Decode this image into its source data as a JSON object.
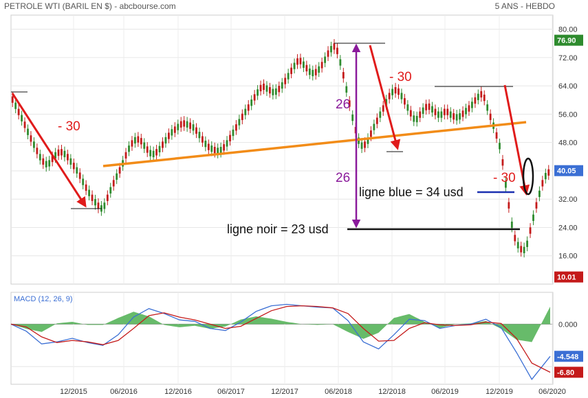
{
  "header": {
    "title": "PETROLE WTI (BARIL EN $) - abcbourse.com",
    "period": "5 ANS - HEBDO"
  },
  "chart_data": [
    {
      "type": "candlestick",
      "series_name": "PETROLE WTI",
      "ylim": [
        8,
        84
      ],
      "yticks": [
        16,
        24,
        32,
        40,
        48,
        56,
        64,
        72,
        80
      ],
      "yticks_labels": [
        "16.00",
        "24.00",
        "32.00",
        "40.00",
        "48.00",
        "56.00",
        "64.00",
        "72.00",
        "80.00"
      ],
      "xticks": [
        "12/2015",
        "06/2016",
        "12/2016",
        "06/2017",
        "12/2017",
        "06/2018",
        "12/2018",
        "06/2019",
        "12/2019",
        "06/2020"
      ],
      "grid": true,
      "price_path": [
        {
          "x": 0,
          "y": 61.0
        },
        {
          "x": 4,
          "y": 57.5
        },
        {
          "x": 8,
          "y": 54.0
        },
        {
          "x": 12,
          "y": 50.0
        },
        {
          "x": 16,
          "y": 46.5
        },
        {
          "x": 20,
          "y": 43.0
        },
        {
          "x": 24,
          "y": 41.5
        },
        {
          "x": 28,
          "y": 44.0
        },
        {
          "x": 32,
          "y": 45.5
        },
        {
          "x": 36,
          "y": 44.5
        },
        {
          "x": 40,
          "y": 42.0
        },
        {
          "x": 44,
          "y": 39.5
        },
        {
          "x": 48,
          "y": 36.0
        },
        {
          "x": 52,
          "y": 33.0
        },
        {
          "x": 56,
          "y": 30.5
        },
        {
          "x": 60,
          "y": 29.0
        },
        {
          "x": 64,
          "y": 33.5
        },
        {
          "x": 68,
          "y": 37.5
        },
        {
          "x": 72,
          "y": 41.0
        },
        {
          "x": 76,
          "y": 45.5
        },
        {
          "x": 80,
          "y": 48.5
        },
        {
          "x": 84,
          "y": 49.0
        },
        {
          "x": 88,
          "y": 46.5
        },
        {
          "x": 92,
          "y": 44.5
        },
        {
          "x": 96,
          "y": 45.5
        },
        {
          "x": 100,
          "y": 48.0
        },
        {
          "x": 104,
          "y": 50.5
        },
        {
          "x": 108,
          "y": 52.0
        },
        {
          "x": 112,
          "y": 53.5
        },
        {
          "x": 116,
          "y": 53.0
        },
        {
          "x": 120,
          "y": 52.0
        },
        {
          "x": 124,
          "y": 49.5
        },
        {
          "x": 128,
          "y": 47.0
        },
        {
          "x": 132,
          "y": 46.0
        },
        {
          "x": 136,
          "y": 45.5
        },
        {
          "x": 140,
          "y": 47.0
        },
        {
          "x": 144,
          "y": 50.0
        },
        {
          "x": 148,
          "y": 53.0
        },
        {
          "x": 152,
          "y": 56.0
        },
        {
          "x": 156,
          "y": 58.5
        },
        {
          "x": 160,
          "y": 61.5
        },
        {
          "x": 164,
          "y": 64.0
        },
        {
          "x": 168,
          "y": 63.0
        },
        {
          "x": 172,
          "y": 62.0
        },
        {
          "x": 176,
          "y": 63.5
        },
        {
          "x": 180,
          "y": 66.0
        },
        {
          "x": 184,
          "y": 69.0
        },
        {
          "x": 188,
          "y": 71.5
        },
        {
          "x": 192,
          "y": 69.5
        },
        {
          "x": 196,
          "y": 67.5
        },
        {
          "x": 200,
          "y": 68.0
        },
        {
          "x": 204,
          "y": 70.5
        },
        {
          "x": 208,
          "y": 74.0
        },
        {
          "x": 212,
          "y": 75.5
        },
        {
          "x": 216,
          "y": 69.0
        },
        {
          "x": 220,
          "y": 61.0
        },
        {
          "x": 224,
          "y": 53.0
        },
        {
          "x": 228,
          "y": 47.0
        },
        {
          "x": 232,
          "y": 47.5
        },
        {
          "x": 236,
          "y": 51.5
        },
        {
          "x": 240,
          "y": 55.0
        },
        {
          "x": 244,
          "y": 58.5
        },
        {
          "x": 248,
          "y": 62.0
        },
        {
          "x": 252,
          "y": 63.0
        },
        {
          "x": 256,
          "y": 60.5
        },
        {
          "x": 260,
          "y": 57.0
        },
        {
          "x": 264,
          "y": 54.0
        },
        {
          "x": 268,
          "y": 56.5
        },
        {
          "x": 272,
          "y": 58.5
        },
        {
          "x": 276,
          "y": 57.0
        },
        {
          "x": 280,
          "y": 55.5
        },
        {
          "x": 284,
          "y": 57.0
        },
        {
          "x": 288,
          "y": 55.5
        },
        {
          "x": 292,
          "y": 55.0
        },
        {
          "x": 296,
          "y": 56.5
        },
        {
          "x": 300,
          "y": 58.0
        },
        {
          "x": 304,
          "y": 60.5
        },
        {
          "x": 308,
          "y": 62.0
        },
        {
          "x": 312,
          "y": 56.5
        },
        {
          "x": 316,
          "y": 51.5
        },
        {
          "x": 320,
          "y": 45.5
        },
        {
          "x": 324,
          "y": 33.0
        },
        {
          "x": 328,
          "y": 22.0
        },
        {
          "x": 332,
          "y": 18.0
        },
        {
          "x": 336,
          "y": 17.5
        },
        {
          "x": 340,
          "y": 25.0
        },
        {
          "x": 344,
          "y": 32.0
        },
        {
          "x": 348,
          "y": 38.0
        },
        {
          "x": 352,
          "y": 40.05
        }
      ],
      "x_range": [
        0,
        352
      ],
      "value_labels": [
        {
          "y": 76.9,
          "text": "76.90",
          "color": "#2e8b2e"
        },
        {
          "y": 40.05,
          "text": "40.05",
          "color": "#3b6fd4"
        },
        {
          "y": 10.01,
          "text": "10.01",
          "color": "#c41a1a"
        }
      ],
      "annotations": {
        "drop_labels": [
          "- 30",
          "- 30",
          "- 30"
        ],
        "vertical_labels": [
          "26",
          "26"
        ],
        "blue_line_text": "ligne blue = 34 usd",
        "black_line_text": "ligne noir = 23 usd"
      }
    },
    {
      "type": "macd",
      "title": "MACD (12, 26, 9)",
      "ylim": [
        -8.5,
        4.5
      ],
      "yticks_labels": [
        "0.000"
      ],
      "value_labels": [
        {
          "y": -4.548,
          "text": "-4.548",
          "color": "#3b6fd4"
        },
        {
          "y": -6.8,
          "text": "-6.80",
          "color": "#c41a1a"
        }
      ],
      "macd_line": [
        {
          "x": 0,
          "y": 0
        },
        {
          "x": 10,
          "y": -1.0
        },
        {
          "x": 20,
          "y": -2.8
        },
        {
          "x": 30,
          "y": -2.5
        },
        {
          "x": 40,
          "y": -2.0
        },
        {
          "x": 50,
          "y": -2.6
        },
        {
          "x": 60,
          "y": -3.0
        },
        {
          "x": 70,
          "y": -1.5
        },
        {
          "x": 80,
          "y": 1.0
        },
        {
          "x": 90,
          "y": 2.2
        },
        {
          "x": 100,
          "y": 1.5
        },
        {
          "x": 110,
          "y": 0.6
        },
        {
          "x": 120,
          "y": 0.4
        },
        {
          "x": 130,
          "y": -0.6
        },
        {
          "x": 140,
          "y": -0.9
        },
        {
          "x": 150,
          "y": 0.3
        },
        {
          "x": 160,
          "y": 1.8
        },
        {
          "x": 170,
          "y": 2.6
        },
        {
          "x": 180,
          "y": 2.8
        },
        {
          "x": 190,
          "y": 2.6
        },
        {
          "x": 200,
          "y": 2.4
        },
        {
          "x": 210,
          "y": 2.3
        },
        {
          "x": 220,
          "y": 0.5
        },
        {
          "x": 230,
          "y": -2.5
        },
        {
          "x": 240,
          "y": -3.5
        },
        {
          "x": 250,
          "y": -1.5
        },
        {
          "x": 260,
          "y": 0.7
        },
        {
          "x": 270,
          "y": 0.5
        },
        {
          "x": 280,
          "y": -0.6
        },
        {
          "x": 290,
          "y": -0.2
        },
        {
          "x": 300,
          "y": 0.0
        },
        {
          "x": 310,
          "y": 0.7
        },
        {
          "x": 320,
          "y": -0.5
        },
        {
          "x": 330,
          "y": -4.0
        },
        {
          "x": 340,
          "y": -7.8
        },
        {
          "x": 352,
          "y": -4.548
        }
      ],
      "signal_line": [
        {
          "x": 0,
          "y": 0
        },
        {
          "x": 10,
          "y": -0.4
        },
        {
          "x": 20,
          "y": -1.8
        },
        {
          "x": 30,
          "y": -2.6
        },
        {
          "x": 40,
          "y": -2.3
        },
        {
          "x": 50,
          "y": -2.5
        },
        {
          "x": 60,
          "y": -2.9
        },
        {
          "x": 70,
          "y": -2.3
        },
        {
          "x": 80,
          "y": -0.6
        },
        {
          "x": 90,
          "y": 1.2
        },
        {
          "x": 100,
          "y": 1.6
        },
        {
          "x": 110,
          "y": 1.0
        },
        {
          "x": 120,
          "y": 0.6
        },
        {
          "x": 130,
          "y": 0.0
        },
        {
          "x": 140,
          "y": -0.6
        },
        {
          "x": 150,
          "y": -0.3
        },
        {
          "x": 160,
          "y": 0.8
        },
        {
          "x": 170,
          "y": 1.9
        },
        {
          "x": 180,
          "y": 2.5
        },
        {
          "x": 190,
          "y": 2.6
        },
        {
          "x": 200,
          "y": 2.5
        },
        {
          "x": 210,
          "y": 2.3
        },
        {
          "x": 220,
          "y": 1.5
        },
        {
          "x": 230,
          "y": -0.6
        },
        {
          "x": 240,
          "y": -2.4
        },
        {
          "x": 250,
          "y": -2.3
        },
        {
          "x": 260,
          "y": -0.6
        },
        {
          "x": 270,
          "y": 0.2
        },
        {
          "x": 280,
          "y": -0.1
        },
        {
          "x": 290,
          "y": -0.2
        },
        {
          "x": 300,
          "y": -0.1
        },
        {
          "x": 310,
          "y": 0.3
        },
        {
          "x": 320,
          "y": 0.1
        },
        {
          "x": 330,
          "y": -2.0
        },
        {
          "x": 340,
          "y": -5.5
        },
        {
          "x": 352,
          "y": -6.8
        }
      ],
      "colors": {
        "macd": "#3b6fd4",
        "signal": "#c41a1a",
        "histogram": "#4caf50"
      }
    }
  ]
}
